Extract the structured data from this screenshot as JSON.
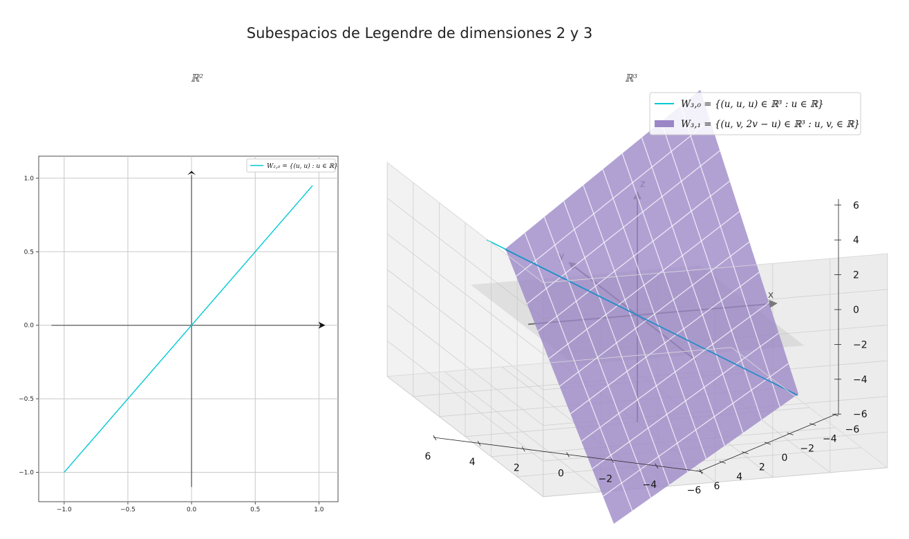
{
  "figure": {
    "title": "Subespacios de Legendre de dimensiones 2 y 3"
  },
  "chart_data": [
    {
      "type": "line",
      "title": "ℝ²",
      "xlim": [
        -1.2,
        1.15
      ],
      "ylim": [
        -1.2,
        1.15
      ],
      "x_ticks": [
        "−1.0",
        "−0.5",
        "0.0",
        "0.5",
        "1.0"
      ],
      "y_ticks": [
        "−1.0",
        "−0.5",
        "0.0",
        "0.5",
        "1.0"
      ],
      "x_tick_values": [
        -1.0,
        -0.5,
        0.0,
        0.5,
        1.0
      ],
      "y_tick_values": [
        -1.0,
        -0.5,
        0.0,
        0.5,
        1.0
      ],
      "grid": true,
      "legend_position": "upper right",
      "coordinate_axes": {
        "x_range": [
          -1.1,
          1.05
        ],
        "y_range": [
          -1.1,
          1.05
        ]
      },
      "series": [
        {
          "name": "W₂,₀ = {(u, u) : u ∈ ℝ}",
          "color": "#00c8d2",
          "x": [
            -1.0,
            0.95
          ],
          "y": [
            -1.0,
            0.95
          ]
        }
      ]
    },
    {
      "type": "surface3d",
      "title": "ℝ³",
      "x_ticks": [
        "6",
        "4",
        "2",
        "0",
        "−2",
        "−4",
        "−6"
      ],
      "x_tick_values": [
        6,
        4,
        2,
        0,
        -2,
        -4,
        -6
      ],
      "y_ticks": [
        "6",
        "4",
        "2",
        "0",
        "−2",
        "−4",
        "−6"
      ],
      "y_tick_values": [
        6,
        4,
        2,
        0,
        -2,
        -4,
        -6
      ],
      "z_ticks": [
        "6",
        "4",
        "2",
        "0",
        "−2",
        "−4",
        "−6"
      ],
      "z_tick_values": [
        6,
        4,
        2,
        0,
        -2,
        -4,
        -6
      ],
      "axis_letters": [
        "x",
        "y",
        "z"
      ],
      "grid": true,
      "legend_position": "upper right",
      "series": [
        {
          "name": "W₃,₀ = {(u, u, u) ∈ ℝ³ : u ∈ ℝ}",
          "kind": "line",
          "color": "#00c8d2"
        },
        {
          "name": "W₃,₁ = {(u, v, 2v − u) ∈ ℝ³ : u, v, ∈ ℝ}",
          "kind": "plane",
          "color": "#9b86c6"
        }
      ]
    }
  ]
}
